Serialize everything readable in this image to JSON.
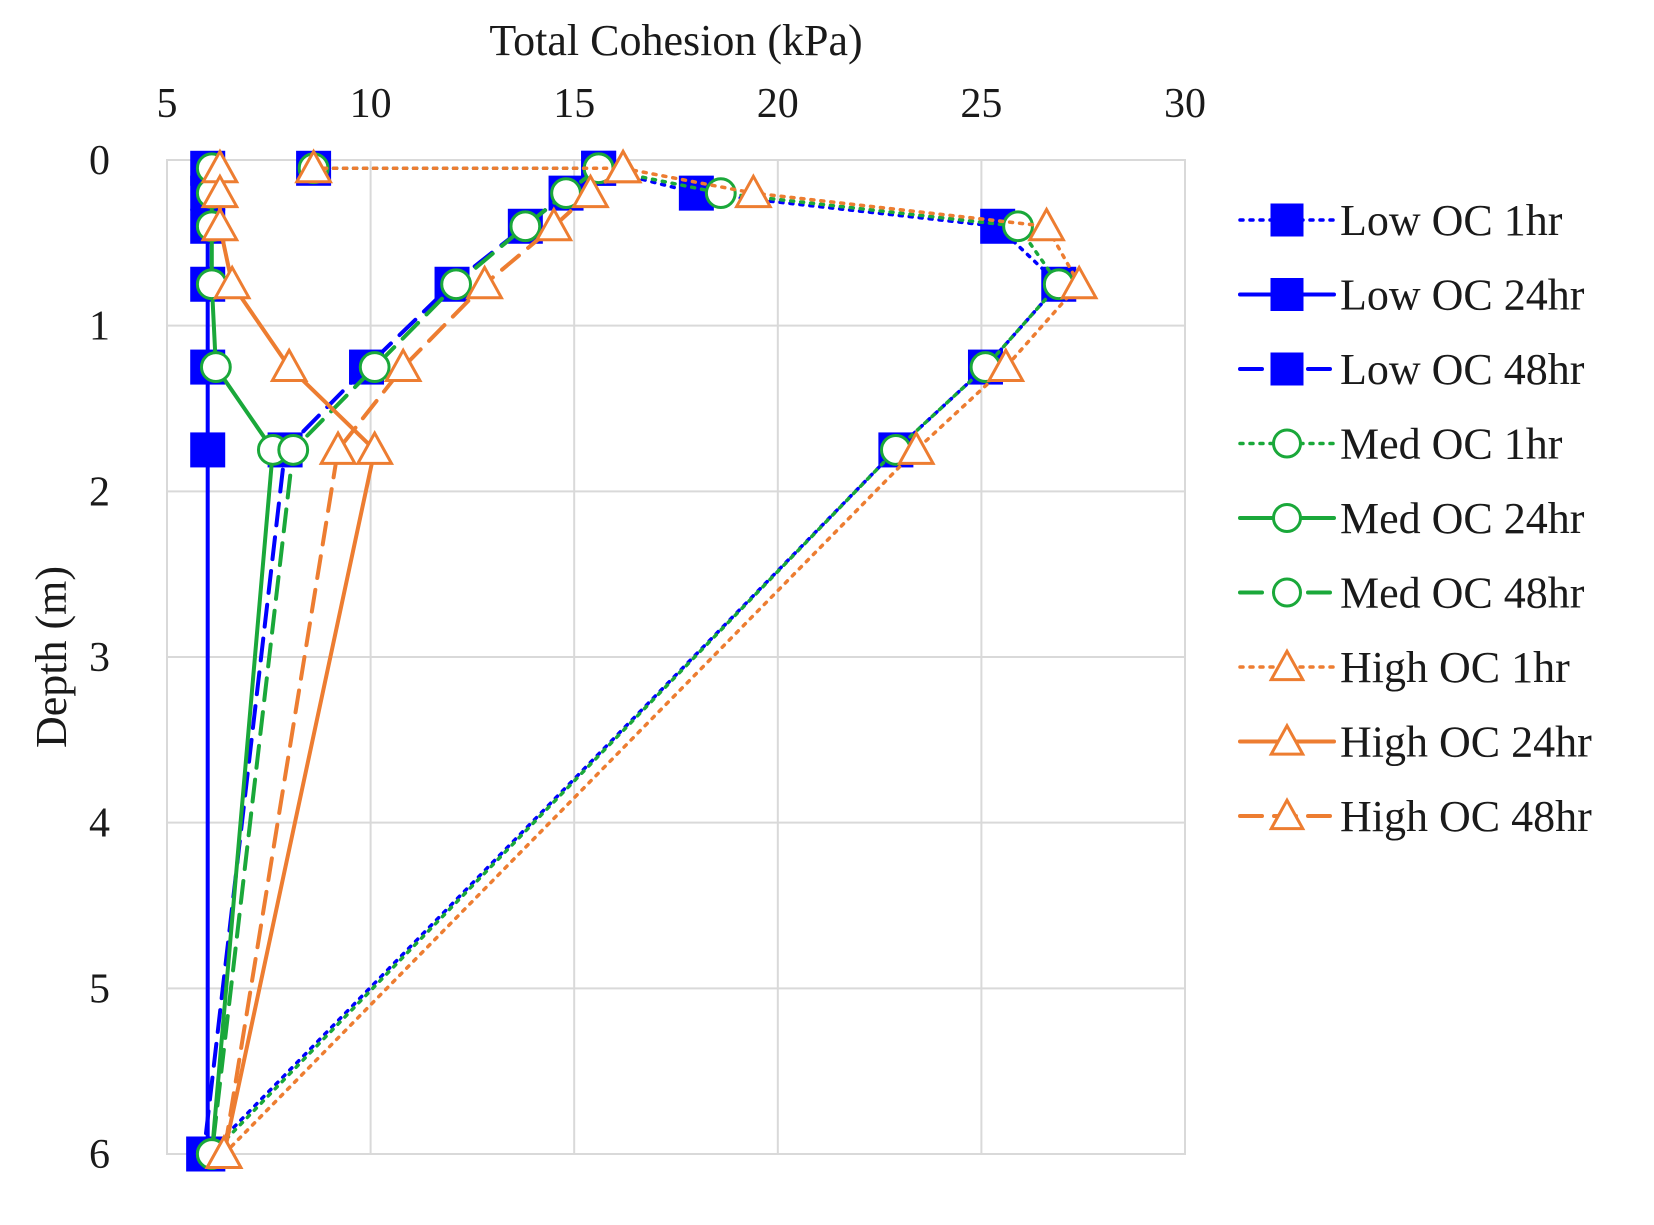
{
  "chart_data": {
    "type": "line",
    "title": "",
    "xlabel": "Total Cohesion (kPa)",
    "ylabel": "Depth (m)",
    "x_axis_position": "top",
    "y_axis_reversed": true,
    "xlim": [
      5,
      30
    ],
    "ylim": [
      0,
      6
    ],
    "xticks": [
      5,
      10,
      15,
      20,
      25,
      30
    ],
    "yticks": [
      0,
      1,
      2,
      3,
      4,
      5,
      6
    ],
    "grid": true,
    "legend_position": "right",
    "series": [
      {
        "name": "Low OC 1hr",
        "color": "#0000ff",
        "dash": "dotted",
        "marker": "square",
        "filled": true,
        "points": [
          [
            8.6,
            0.05
          ],
          [
            15.6,
            0.05
          ],
          [
            18.0,
            0.2
          ],
          [
            25.4,
            0.4
          ],
          [
            26.9,
            0.75
          ],
          [
            25.1,
            1.25
          ],
          [
            22.9,
            1.75
          ],
          [
            6.0,
            6.0
          ]
        ]
      },
      {
        "name": "Low OC 24hr",
        "color": "#0000ff",
        "dash": "solid",
        "marker": "square",
        "filled": true,
        "points": [
          [
            6.0,
            0.05
          ],
          [
            6.0,
            0.2
          ],
          [
            6.0,
            0.4
          ],
          [
            6.0,
            0.75
          ],
          [
            6.0,
            1.25
          ],
          [
            6.0,
            1.75
          ],
          [
            6.0,
            6.0
          ]
        ]
      },
      {
        "name": "Low OC 48hr",
        "color": "#0000ff",
        "dash": "dashed",
        "marker": "square",
        "filled": true,
        "points": [
          [
            15.6,
            0.05
          ],
          [
            14.8,
            0.2
          ],
          [
            13.8,
            0.4
          ],
          [
            12.0,
            0.75
          ],
          [
            9.9,
            1.25
          ],
          [
            7.9,
            1.75
          ],
          [
            5.9,
            6.0
          ]
        ]
      },
      {
        "name": "Med OC 1hr",
        "color": "#1aa83a",
        "dash": "dotted",
        "marker": "circle",
        "filled": false,
        "points": [
          [
            8.6,
            0.05
          ],
          [
            15.6,
            0.05
          ],
          [
            18.6,
            0.2
          ],
          [
            25.9,
            0.4
          ],
          [
            26.9,
            0.75
          ],
          [
            25.1,
            1.25
          ],
          [
            22.9,
            1.75
          ],
          [
            6.1,
            6.0
          ]
        ]
      },
      {
        "name": "Med OC 24hr",
        "color": "#1aa83a",
        "dash": "solid",
        "marker": "circle",
        "filled": false,
        "points": [
          [
            6.1,
            0.05
          ],
          [
            6.1,
            0.2
          ],
          [
            6.1,
            0.4
          ],
          [
            6.1,
            0.75
          ],
          [
            6.2,
            1.25
          ],
          [
            7.6,
            1.75
          ],
          [
            6.1,
            6.0
          ]
        ]
      },
      {
        "name": "Med OC 48hr",
        "color": "#1aa83a",
        "dash": "dashed",
        "marker": "circle",
        "filled": false,
        "points": [
          [
            15.6,
            0.05
          ],
          [
            14.8,
            0.2
          ],
          [
            13.8,
            0.4
          ],
          [
            12.1,
            0.75
          ],
          [
            10.1,
            1.25
          ],
          [
            8.1,
            1.75
          ],
          [
            6.1,
            6.0
          ]
        ]
      },
      {
        "name": "High OC 1hr",
        "color": "#ed7d31",
        "dash": "dotted",
        "marker": "triangle",
        "filled": false,
        "points": [
          [
            8.6,
            0.05
          ],
          [
            16.2,
            0.05
          ],
          [
            19.4,
            0.2
          ],
          [
            26.6,
            0.4
          ],
          [
            27.4,
            0.75
          ],
          [
            25.6,
            1.25
          ],
          [
            23.4,
            1.75
          ],
          [
            6.4,
            6.0
          ]
        ]
      },
      {
        "name": "High OC 24hr",
        "color": "#ed7d31",
        "dash": "solid",
        "marker": "triangle",
        "filled": false,
        "points": [
          [
            6.3,
            0.05
          ],
          [
            6.3,
            0.2
          ],
          [
            6.3,
            0.4
          ],
          [
            6.6,
            0.75
          ],
          [
            8.0,
            1.25
          ],
          [
            10.1,
            1.75
          ],
          [
            6.4,
            6.0
          ]
        ]
      },
      {
        "name": "High OC 48hr",
        "color": "#ed7d31",
        "dash": "dashed",
        "marker": "triangle",
        "filled": false,
        "points": [
          [
            16.2,
            0.05
          ],
          [
            15.4,
            0.2
          ],
          [
            14.5,
            0.4
          ],
          [
            12.8,
            0.75
          ],
          [
            10.8,
            1.25
          ],
          [
            9.2,
            1.75
          ],
          [
            6.4,
            6.0
          ]
        ]
      }
    ]
  }
}
